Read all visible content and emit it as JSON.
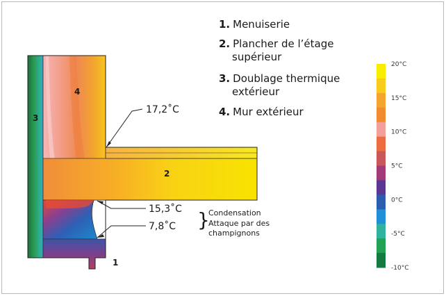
{
  "legend": {
    "items": [
      {
        "num": "1.",
        "lines": [
          "Menuiserie"
        ]
      },
      {
        "num": "2.",
        "lines": [
          "Plancher de l’étage",
          "supérieur"
        ]
      },
      {
        "num": "3.",
        "lines": [
          "Doublage thermique",
          "extérieur"
        ]
      },
      {
        "num": "4.",
        "lines": [
          "Mur extérieur"
        ]
      }
    ]
  },
  "part_labels": {
    "p1": "1",
    "p2": "2",
    "p3": "3",
    "p4": "4"
  },
  "annotations": {
    "t_top": "17,2˚C",
    "t_mid": "15,3˚C",
    "t_low": "7,8˚C",
    "brace": "}",
    "cond": "Condensation",
    "attack_1": "Attaque par des",
    "attack_2": "champignons"
  },
  "scale": {
    "labels": [
      "20°C",
      "15°C",
      "10°C",
      "5°C",
      "0°C",
      "-5°C",
      "-10°C"
    ],
    "colors": [
      "#f8ec00",
      "#f9cc1c",
      "#f5a52d",
      "#f08b2f",
      "#f4a09a",
      "#ec6b3f",
      "#c9575a",
      "#a03b78",
      "#5a3792",
      "#2a5db0",
      "#1f8fd8",
      "#2fb39d",
      "#21a152",
      "#157a3f"
    ]
  }
}
